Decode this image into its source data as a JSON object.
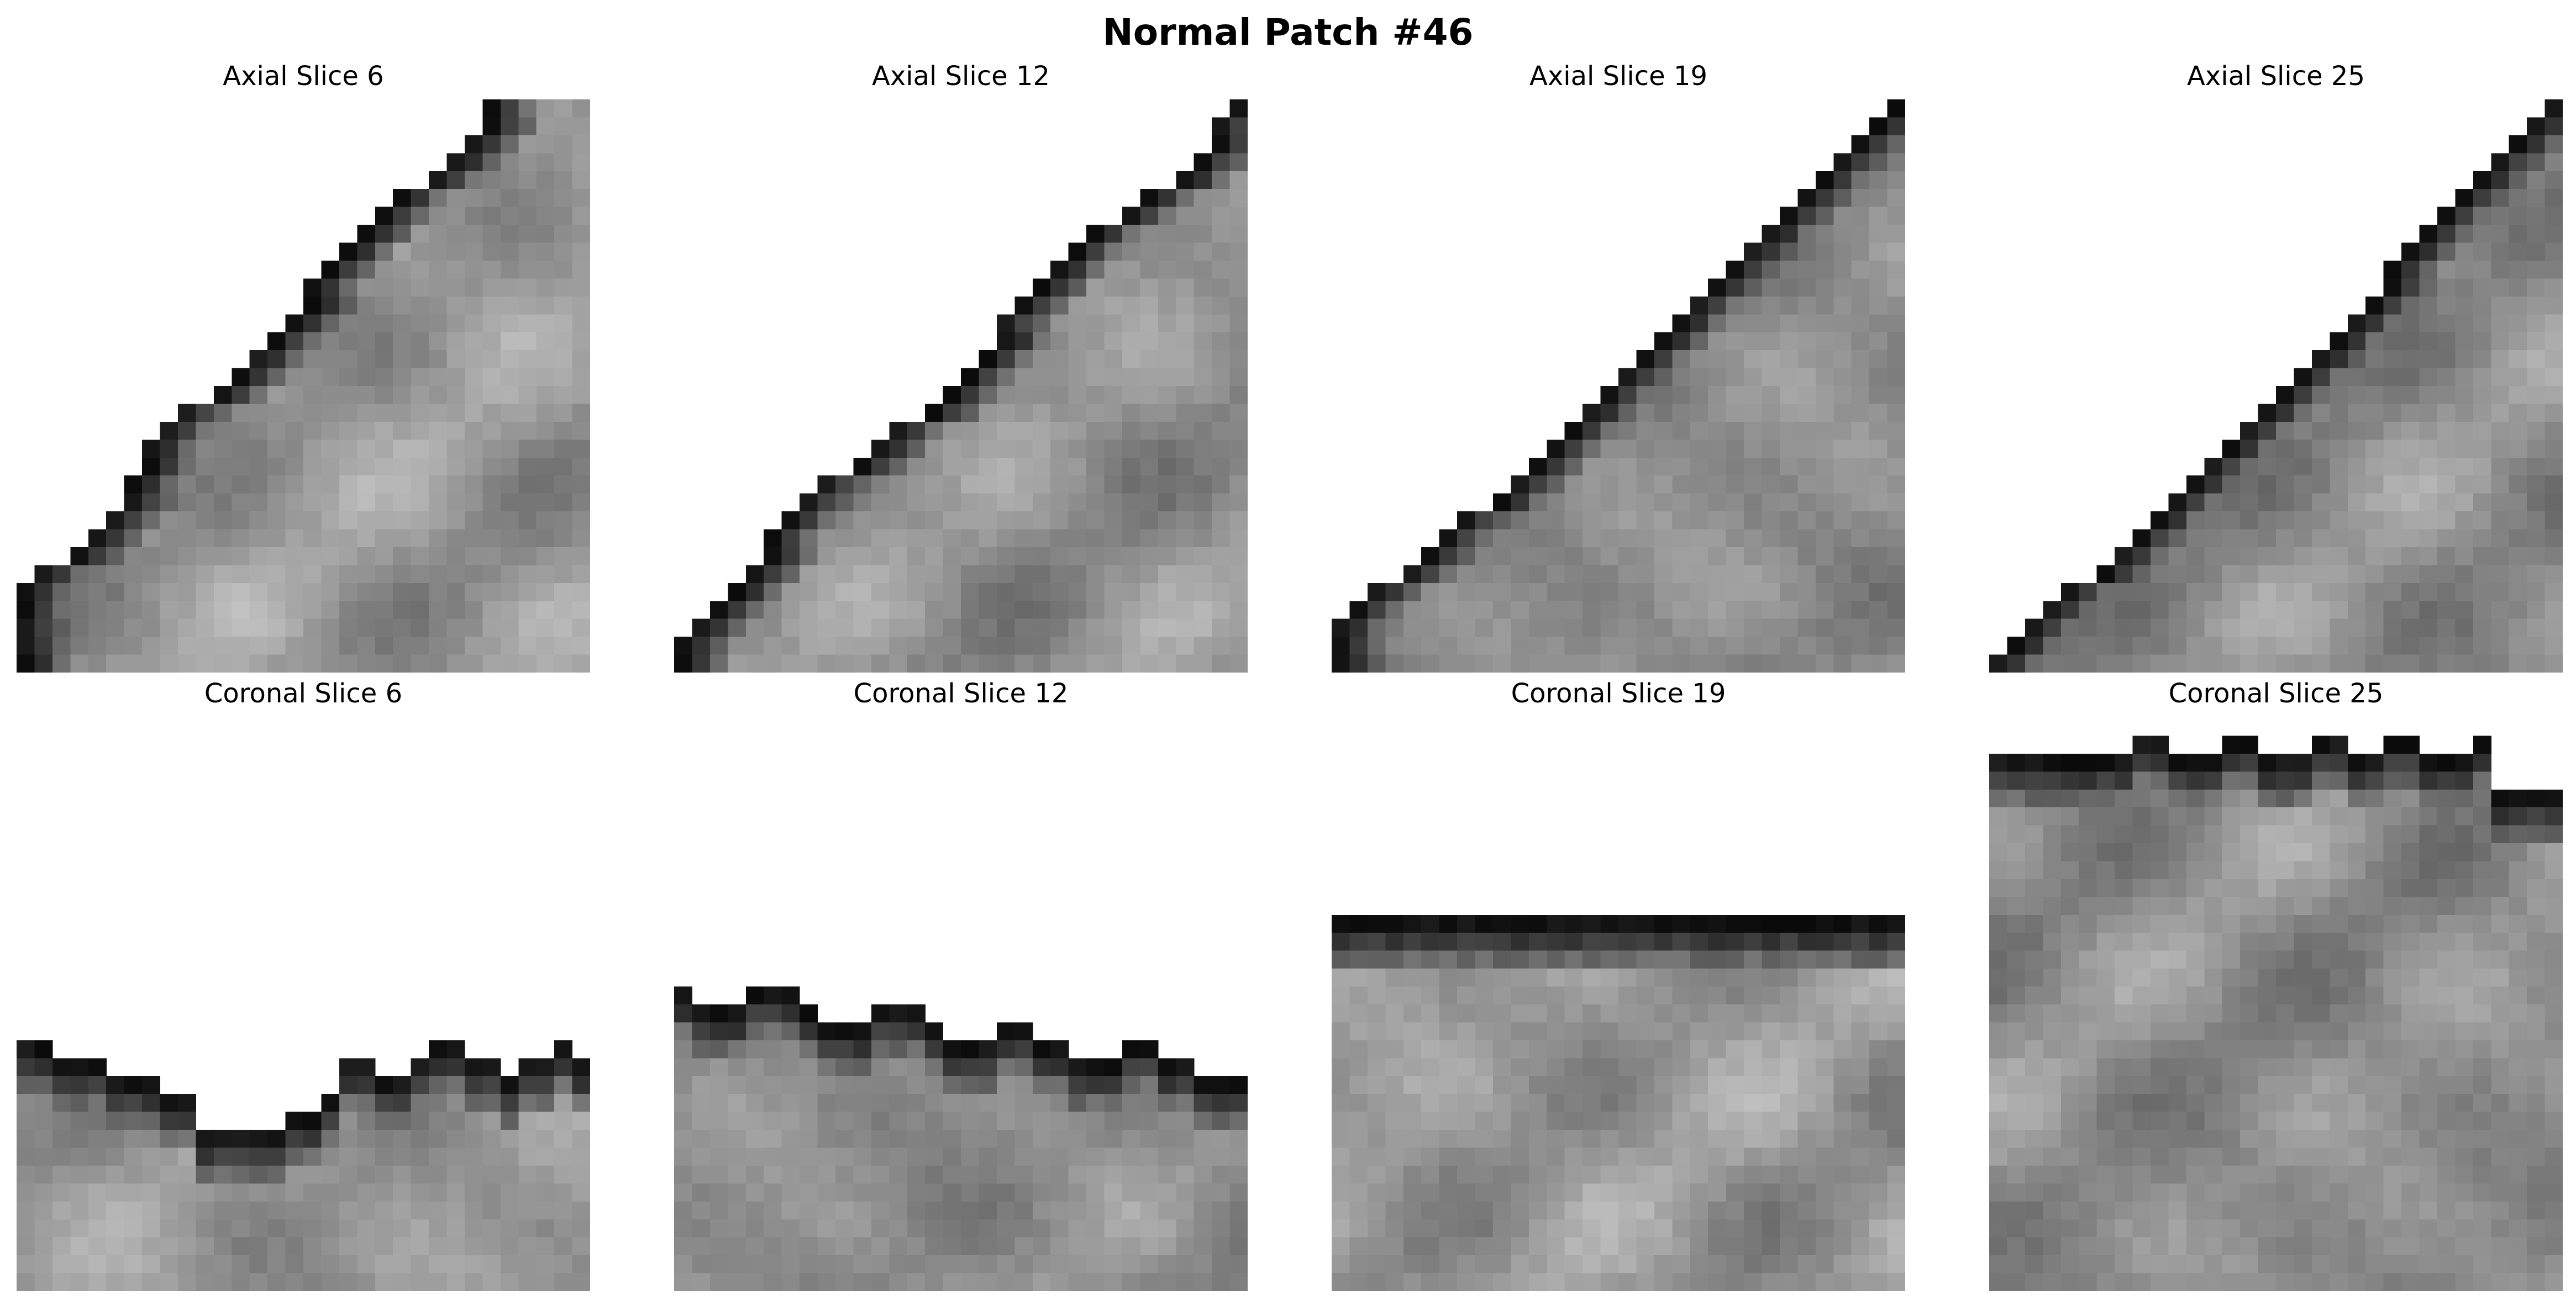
{
  "figure": {
    "title": "Normal Patch #46"
  },
  "panels": [
    {
      "title": "Axial Slice 6",
      "view": "axial",
      "seed": 11,
      "bg_gray": 150
    },
    {
      "title": "Axial Slice 12",
      "view": "axial",
      "seed": 23,
      "bg_gray": 145
    },
    {
      "title": "Axial Slice 19",
      "view": "axial",
      "seed": 37,
      "bg_gray": 140
    },
    {
      "title": "Axial Slice 25",
      "view": "axial",
      "seed": 53,
      "bg_gray": 140
    },
    {
      "title": "Coronal Slice 6",
      "view": "coronal",
      "seed": 61,
      "bg_gray": 150
    },
    {
      "title": "Coronal Slice 12",
      "view": "coronal",
      "seed": 79,
      "bg_gray": 140
    },
    {
      "title": "Coronal Slice 19",
      "view": "coronal",
      "seed": 97,
      "bg_gray": 150
    },
    {
      "title": "Coronal Slice 25",
      "view": "coronal",
      "seed": 113,
      "bg_gray": 140
    }
  ],
  "colormap": "gray"
}
